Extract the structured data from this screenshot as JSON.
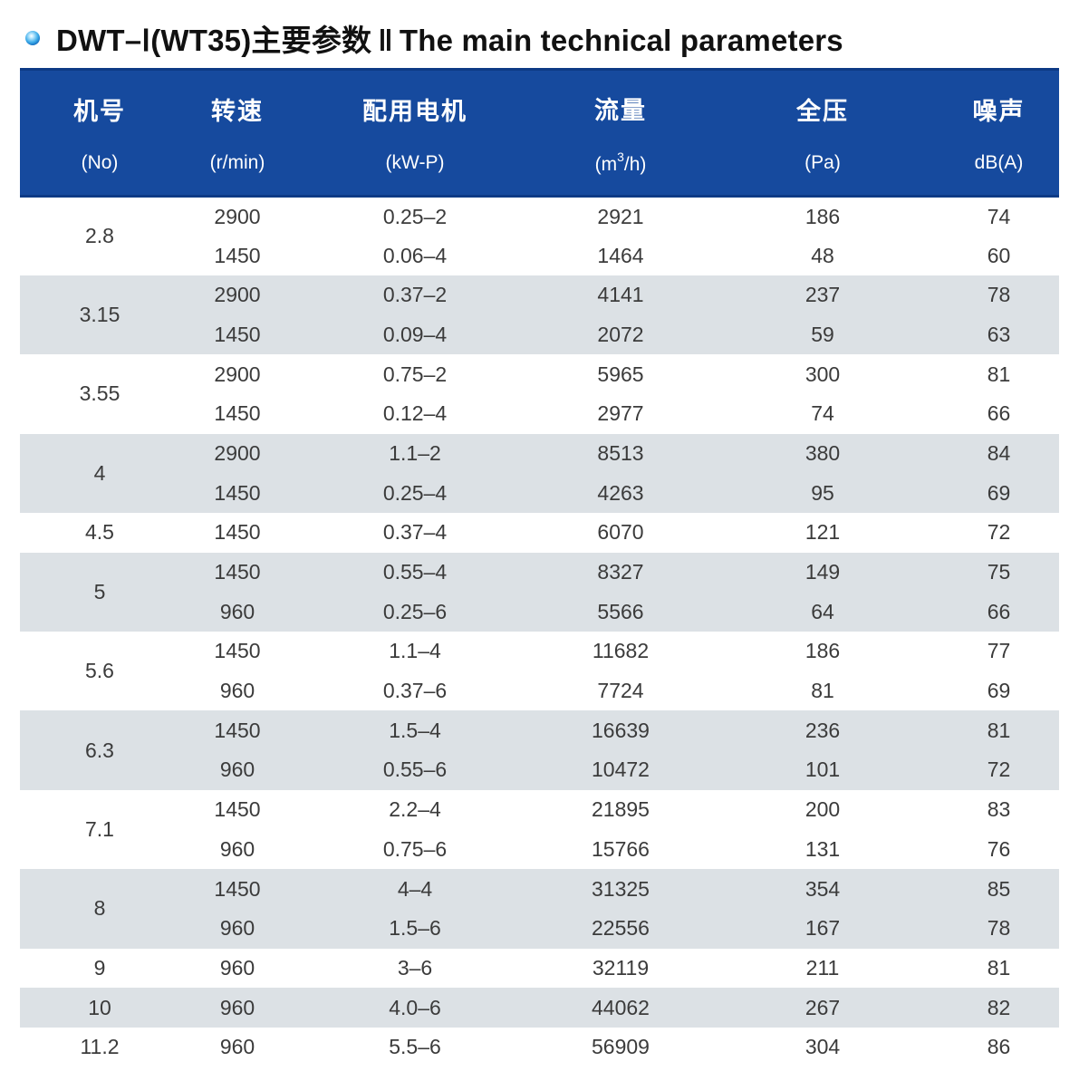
{
  "title": {
    "model_pre": "DWT–",
    "model_numeral": "Ⅰ",
    "model_post": "(WT35)主要参数",
    "divider": "‖",
    "en": "The main technical parameters"
  },
  "table": {
    "columns": [
      {
        "zh": "机号",
        "sub": "(No)"
      },
      {
        "zh": "转速",
        "sub": "(r/min)"
      },
      {
        "zh": "配用电机",
        "sub": "(kW-P)"
      },
      {
        "zh": "流量",
        "sub_pre": "(m",
        "sub_sup": "3",
        "sub_post": "/h)"
      },
      {
        "zh": "全压",
        "sub": "(Pa)"
      },
      {
        "zh": "噪声",
        "sub": "dB(A)"
      }
    ],
    "groups": [
      {
        "no": "2.8",
        "shade": false,
        "rows": [
          [
            "2900",
            "0.25–2",
            "2921",
            "186",
            "74"
          ],
          [
            "1450",
            "0.06–4",
            "1464",
            "48",
            "60"
          ]
        ]
      },
      {
        "no": "3.15",
        "shade": true,
        "rows": [
          [
            "2900",
            "0.37–2",
            "4141",
            "237",
            "78"
          ],
          [
            "1450",
            "0.09–4",
            "2072",
            "59",
            "63"
          ]
        ]
      },
      {
        "no": "3.55",
        "shade": false,
        "rows": [
          [
            "2900",
            "0.75–2",
            "5965",
            "300",
            "81"
          ],
          [
            "1450",
            "0.12–4",
            "2977",
            "74",
            "66"
          ]
        ]
      },
      {
        "no": "4",
        "shade": true,
        "rows": [
          [
            "2900",
            "1.1–2",
            "8513",
            "380",
            "84"
          ],
          [
            "1450",
            "0.25–4",
            "4263",
            "95",
            "69"
          ]
        ]
      },
      {
        "no": "4.5",
        "shade": false,
        "rows": [
          [
            "1450",
            "0.37–4",
            "6070",
            "121",
            "72"
          ]
        ]
      },
      {
        "no": "5",
        "shade": true,
        "rows": [
          [
            "1450",
            "0.55–4",
            "8327",
            "149",
            "75"
          ],
          [
            "960",
            "0.25–6",
            "5566",
            "64",
            "66"
          ]
        ]
      },
      {
        "no": "5.6",
        "shade": false,
        "rows": [
          [
            "1450",
            "1.1–4",
            "11682",
            "186",
            "77"
          ],
          [
            "960",
            "0.37–6",
            "7724",
            "81",
            "69"
          ]
        ]
      },
      {
        "no": "6.3",
        "shade": true,
        "rows": [
          [
            "1450",
            "1.5–4",
            "16639",
            "236",
            "81"
          ],
          [
            "960",
            "0.55–6",
            "10472",
            "101",
            "72"
          ]
        ]
      },
      {
        "no": "7.1",
        "shade": false,
        "rows": [
          [
            "1450",
            "2.2–4",
            "21895",
            "200",
            "83"
          ],
          [
            "960",
            "0.75–6",
            "15766",
            "131",
            "76"
          ]
        ]
      },
      {
        "no": "8",
        "shade": true,
        "rows": [
          [
            "1450",
            "4–4",
            "31325",
            "354",
            "85"
          ],
          [
            "960",
            "1.5–6",
            "22556",
            "167",
            "78"
          ]
        ]
      },
      {
        "no": "9",
        "shade": false,
        "rows": [
          [
            "960",
            "3–6",
            "32119",
            "211",
            "81"
          ]
        ]
      },
      {
        "no": "10",
        "shade": true,
        "rows": [
          [
            "960",
            "4.0–6",
            "44062",
            "267",
            "82"
          ]
        ]
      },
      {
        "no": "11.2",
        "shade": false,
        "rows": [
          [
            "960",
            "5.5–6",
            "56909",
            "304",
            "86"
          ]
        ]
      }
    ]
  },
  "colors": {
    "header_bg": "#164a9e",
    "header_edge": "#0d3a85",
    "stripe": "#dce1e5",
    "body_text": "#3b3b3b",
    "title_text": "#111111"
  }
}
